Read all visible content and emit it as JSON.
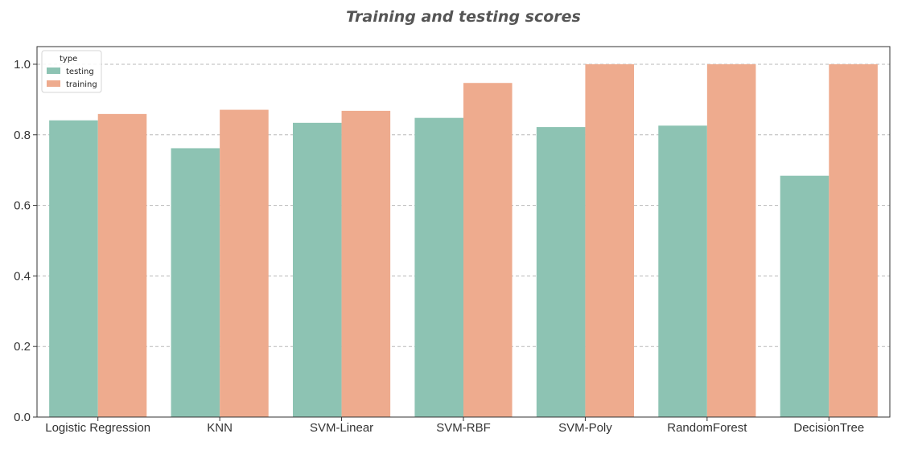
{
  "chart_data": {
    "type": "bar",
    "title": "Training and testing scores",
    "xlabel": "",
    "ylabel": "",
    "categories": [
      "Logistic Regression",
      "KNN",
      "SVM-Linear",
      "SVM-RBF",
      "SVM-Poly",
      "RandomForest",
      "DecisionTree"
    ],
    "series": [
      {
        "name": "testing",
        "color": "#8dc3b3",
        "values": [
          0.841,
          0.762,
          0.834,
          0.848,
          0.822,
          0.826,
          0.684
        ]
      },
      {
        "name": "training",
        "color": "#eeab8e",
        "values": [
          0.859,
          0.871,
          0.868,
          0.947,
          1.0,
          1.0,
          1.0
        ]
      }
    ],
    "ylim": [
      0.0,
      1.05
    ],
    "yticks": [
      0.0,
      0.2,
      0.4,
      0.6,
      0.8,
      1.0
    ],
    "ytick_labels": [
      "0.0",
      "0.2",
      "0.4",
      "0.6",
      "0.8",
      "1.0"
    ],
    "grid": "y-dashed",
    "legend": {
      "title": "type",
      "placement": "top-left"
    }
  }
}
